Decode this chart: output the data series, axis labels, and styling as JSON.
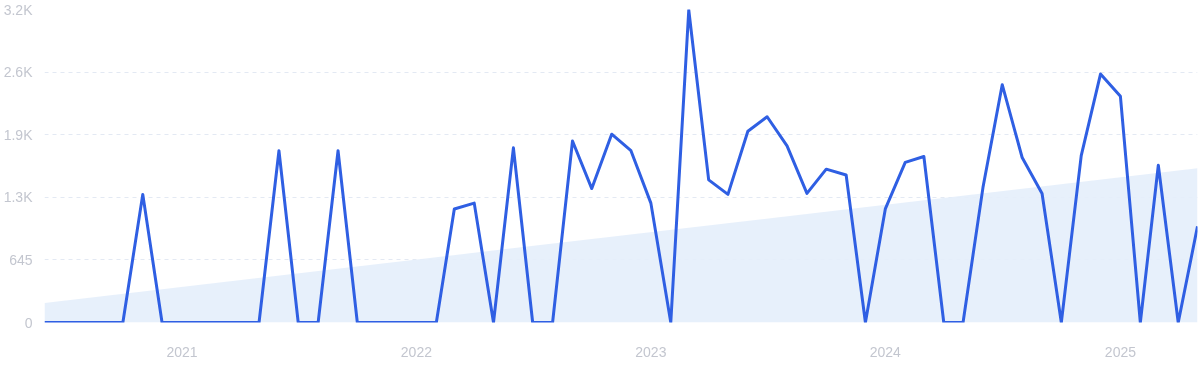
{
  "chart_data": {
    "type": "line",
    "x": [
      "2020-06",
      "2020-07",
      "2020-08",
      "2020-09",
      "2020-10",
      "2020-11",
      "2020-12",
      "2021-01",
      "2021-02",
      "2021-03",
      "2021-04",
      "2021-05",
      "2021-06",
      "2021-07",
      "2021-08",
      "2021-09",
      "2021-10",
      "2021-11",
      "2021-12",
      "2022-01",
      "2022-02",
      "2022-03",
      "2022-04",
      "2022-05",
      "2022-06",
      "2022-07",
      "2022-08",
      "2022-09",
      "2022-10",
      "2022-11",
      "2022-12",
      "2023-01",
      "2023-02",
      "2023-03",
      "2023-04",
      "2023-05",
      "2023-06",
      "2023-07",
      "2023-08",
      "2023-09",
      "2023-10",
      "2023-11",
      "2023-12",
      "2024-01",
      "2024-02",
      "2024-03",
      "2024-04",
      "2024-05",
      "2024-06",
      "2024-07",
      "2024-08",
      "2024-09",
      "2024-10",
      "2024-11",
      "2024-12",
      "2025-01",
      "2025-02",
      "2025-03",
      "2025-04",
      "2025-05"
    ],
    "series": [
      {
        "type": "area",
        "color": "#e4eefb",
        "x": [
          "2020-06",
          "2025-05"
        ],
        "values": [
          200,
          1590
        ]
      },
      {
        "color": "#2f5fe3",
        "values": [
          0,
          0,
          0,
          0,
          0,
          1320,
          0,
          0,
          0,
          0,
          0,
          0,
          1770,
          0,
          0,
          1770,
          0,
          0,
          0,
          0,
          0,
          1170,
          1230,
          0,
          1800,
          0,
          0,
          1870,
          1380,
          1940,
          1770,
          1230,
          0,
          3220,
          1470,
          1320,
          1970,
          2120,
          1820,
          1330,
          1580,
          1520,
          0,
          1170,
          1650,
          1710,
          0,
          0,
          1390,
          2450,
          1700,
          1330,
          0,
          1720,
          2560,
          2330,
          0,
          1620,
          0,
          990
        ]
      }
    ],
    "xlim": [
      "2020-06",
      "2025-05"
    ],
    "xticks": [
      "2021",
      "2022",
      "2023",
      "2024",
      "2025"
    ],
    "ylim": [
      0,
      3225
    ],
    "yticks": [
      0,
      645,
      {
        "value": 1290,
        "label": "1.3K"
      },
      {
        "value": 1935,
        "label": "1.9K"
      },
      {
        "value": 2580,
        "label": "2.6K"
      },
      {
        "value": 3225,
        "label": "3.2K"
      }
    ],
    "grid": "y",
    "marker": "none",
    "line_style": "solid"
  }
}
